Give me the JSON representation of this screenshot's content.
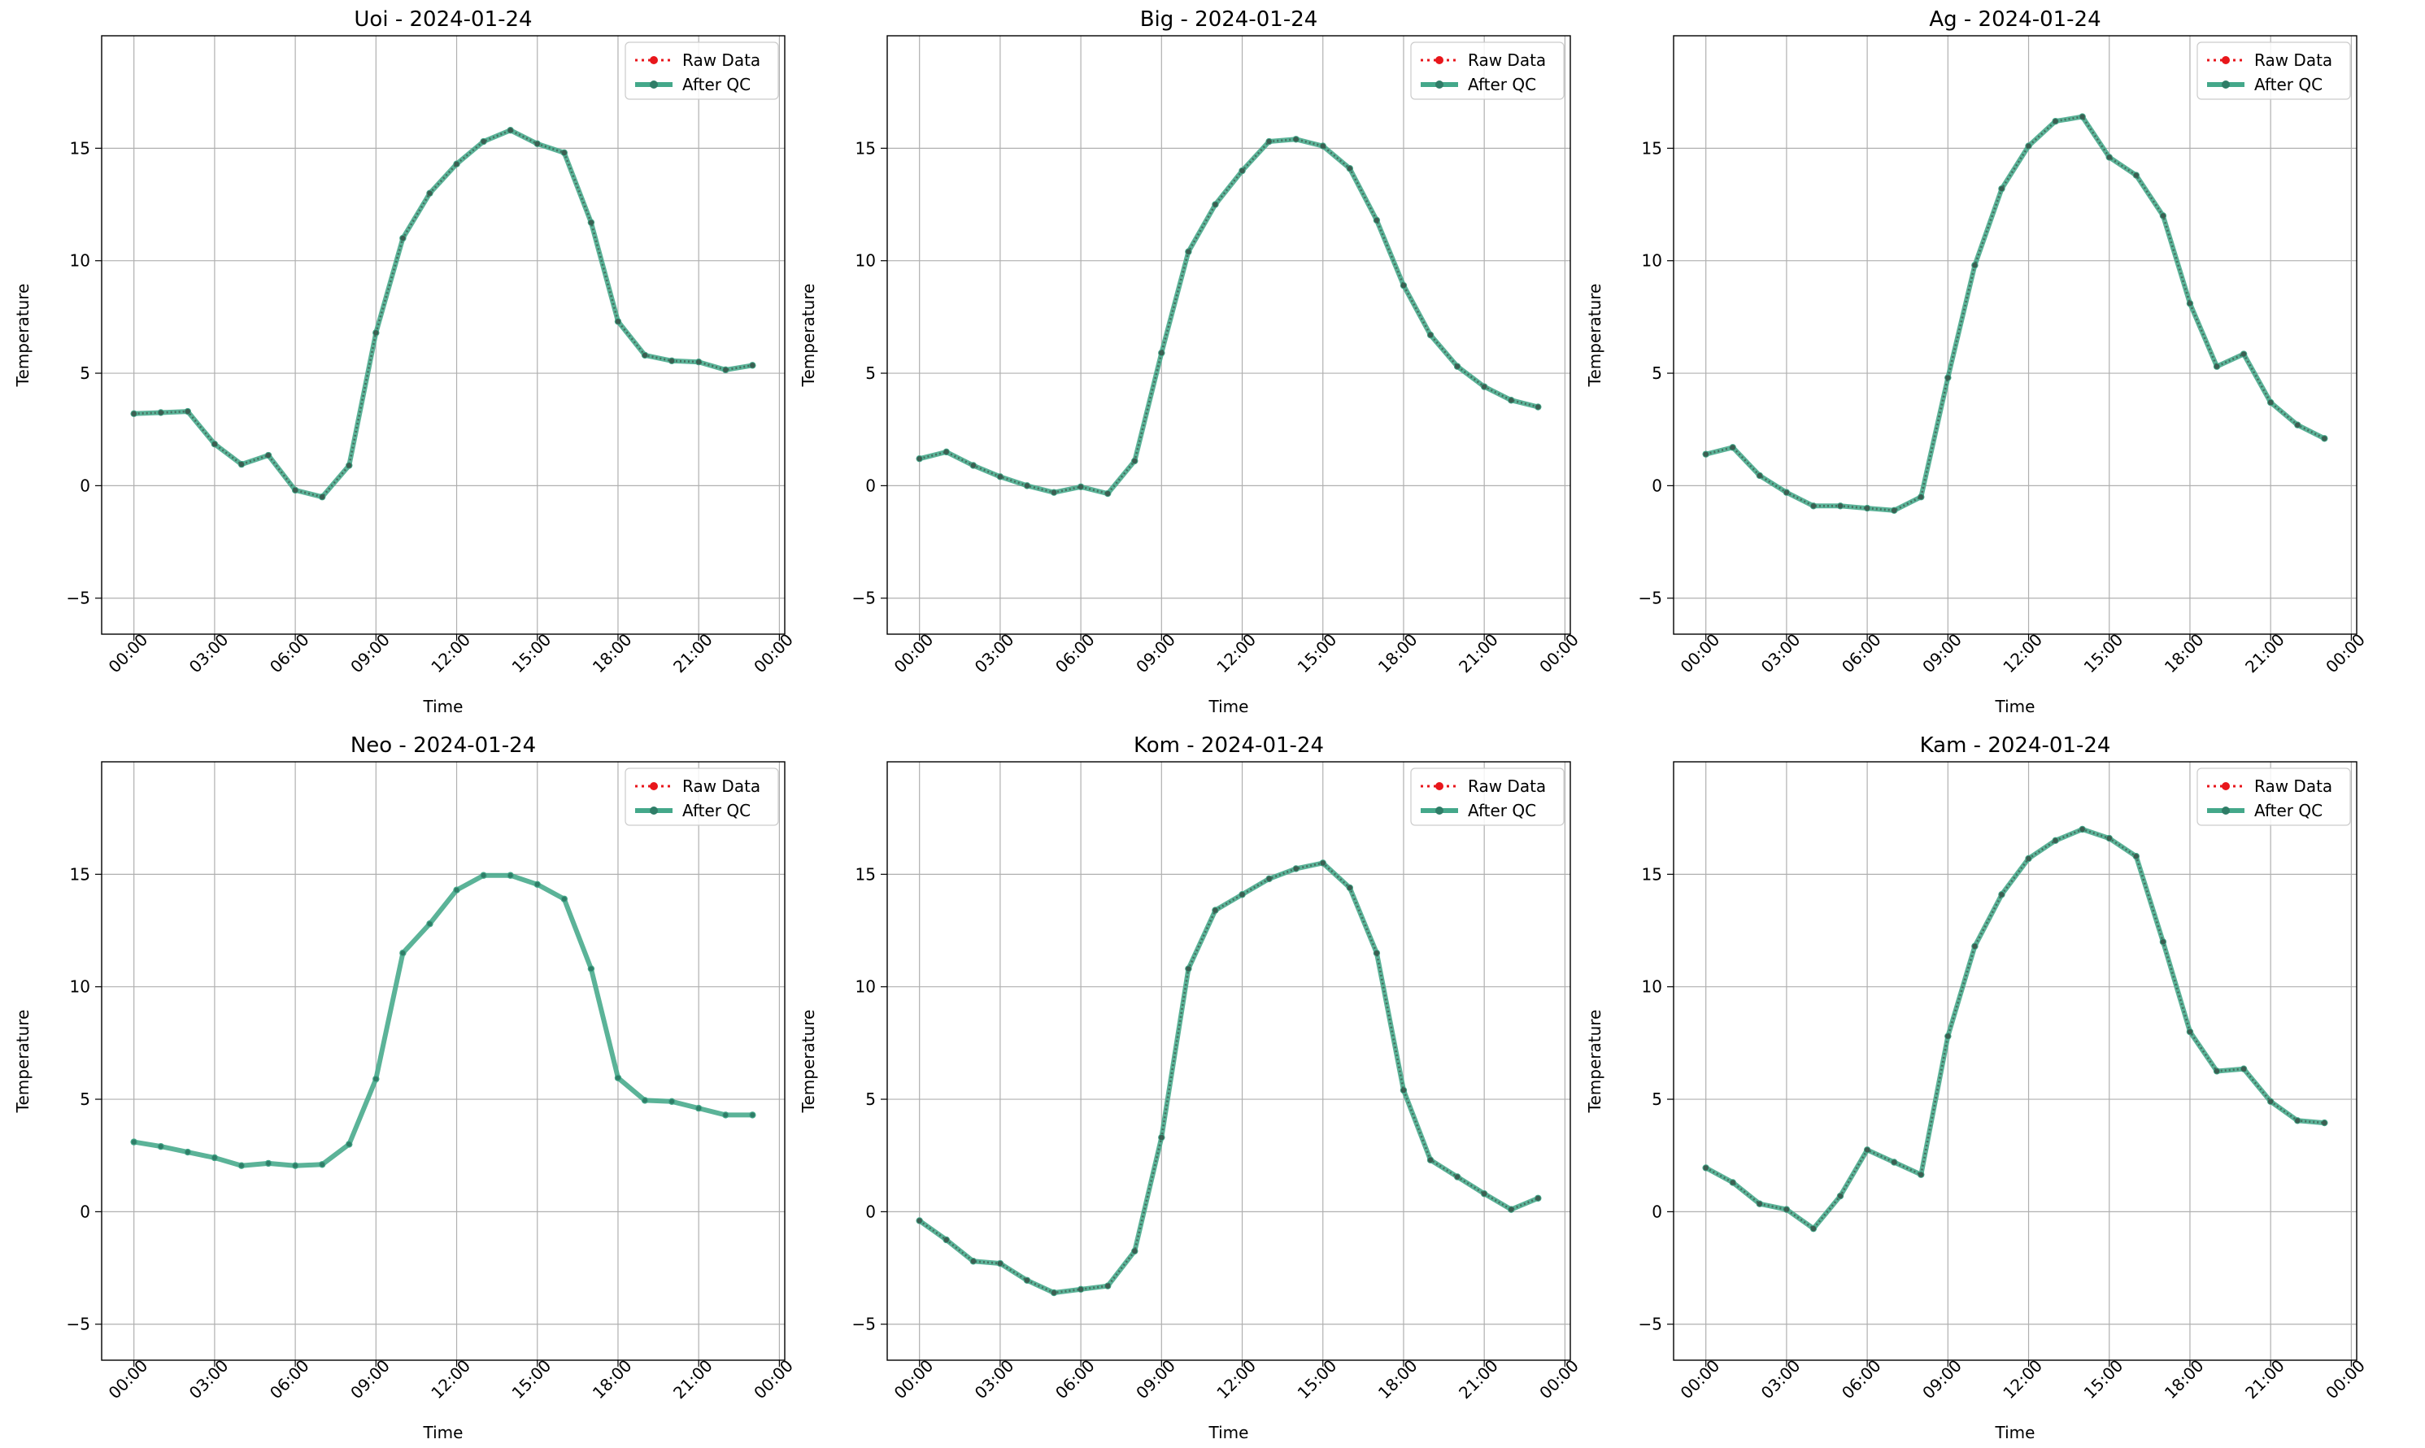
{
  "legend": {
    "raw_label": "Raw Data",
    "qc_label": "After QC",
    "placement": "upper-right"
  },
  "colors": {
    "raw": "#e8161b",
    "qc": "#44a88a",
    "grid": "#b0b0b0",
    "axis": "#000000"
  },
  "axes": {
    "xlabel": "Time",
    "ylabel": "Temperature",
    "xticks": [
      "00:00",
      "03:00",
      "06:00",
      "09:00",
      "12:00",
      "15:00",
      "18:00",
      "21:00",
      "00:00"
    ],
    "yticks": [
      "-5",
      "0",
      "5",
      "10",
      "15"
    ]
  },
  "chart_data": [
    {
      "type": "line",
      "title": "Uoi - 2024-01-24",
      "x": [
        "00:00",
        "01:00",
        "02:00",
        "03:00",
        "04:00",
        "05:00",
        "06:00",
        "07:00",
        "08:00",
        "09:00",
        "10:00",
        "11:00",
        "12:00",
        "13:00",
        "14:00",
        "15:00",
        "16:00",
        "17:00",
        "18:00",
        "19:00",
        "20:00",
        "21:00",
        "22:00",
        "23:00"
      ],
      "series": [
        {
          "name": "Raw Data",
          "values": [
            3.2,
            3.25,
            3.3,
            1.85,
            0.95,
            1.35,
            -0.2,
            -0.5,
            0.9,
            6.8,
            11.0,
            13.0,
            14.3,
            15.3,
            15.8,
            15.2,
            14.8,
            11.7,
            7.3,
            5.8,
            5.55,
            5.5,
            5.15,
            5.35
          ]
        },
        {
          "name": "After QC",
          "values": [
            3.2,
            3.25,
            3.3,
            1.85,
            0.95,
            1.35,
            -0.2,
            -0.5,
            0.9,
            6.8,
            11.0,
            13.0,
            14.3,
            15.3,
            15.8,
            15.2,
            14.8,
            11.7,
            7.3,
            5.8,
            5.55,
            5.5,
            5.15,
            5.35
          ]
        }
      ],
      "xlabel": "Time",
      "ylabel": "Temperature",
      "ylim": [
        -6.6,
        20
      ],
      "grid": true,
      "legend": "upper-right"
    },
    {
      "type": "line",
      "title": "Big - 2024-01-24",
      "x": [
        "00:00",
        "01:00",
        "02:00",
        "03:00",
        "04:00",
        "05:00",
        "06:00",
        "07:00",
        "08:00",
        "09:00",
        "10:00",
        "11:00",
        "12:00",
        "13:00",
        "14:00",
        "15:00",
        "16:00",
        "17:00",
        "18:00",
        "19:00",
        "20:00",
        "21:00",
        "22:00",
        "23:00"
      ],
      "series": [
        {
          "name": "Raw Data",
          "values": [
            1.2,
            1.5,
            0.9,
            0.4,
            0.0,
            -0.3,
            -0.05,
            -0.35,
            1.1,
            5.9,
            10.4,
            12.5,
            14.0,
            15.3,
            15.4,
            15.1,
            14.1,
            11.8,
            8.9,
            6.7,
            5.3,
            4.4,
            3.8,
            3.5
          ]
        },
        {
          "name": "After QC",
          "values": [
            1.2,
            1.5,
            0.9,
            0.4,
            0.0,
            -0.3,
            -0.05,
            -0.35,
            1.1,
            5.9,
            10.4,
            12.5,
            14.0,
            15.3,
            15.4,
            15.1,
            14.1,
            11.8,
            8.9,
            6.7,
            5.3,
            4.4,
            3.8,
            3.5
          ]
        }
      ],
      "xlabel": "Time",
      "ylabel": "Temperature",
      "ylim": [
        -6.6,
        20
      ],
      "grid": true,
      "legend": "upper-right"
    },
    {
      "type": "line",
      "title": "Ag - 2024-01-24",
      "x": [
        "00:00",
        "01:00",
        "02:00",
        "03:00",
        "04:00",
        "05:00",
        "06:00",
        "07:00",
        "08:00",
        "09:00",
        "10:00",
        "11:00",
        "12:00",
        "13:00",
        "14:00",
        "15:00",
        "16:00",
        "17:00",
        "18:00",
        "19:00",
        "20:00",
        "21:00",
        "22:00",
        "23:00"
      ],
      "series": [
        {
          "name": "Raw Data",
          "values": [
            1.4,
            1.7,
            0.45,
            -0.3,
            -0.9,
            -0.9,
            -1.0,
            -1.1,
            -0.5,
            4.8,
            9.8,
            13.2,
            15.1,
            16.2,
            16.4,
            14.6,
            13.8,
            12.0,
            8.1,
            5.3,
            5.85,
            3.7,
            2.7,
            2.1
          ]
        },
        {
          "name": "After QC",
          "values": [
            1.4,
            1.7,
            0.45,
            -0.3,
            -0.9,
            -0.9,
            -1.0,
            -1.1,
            -0.5,
            4.8,
            9.8,
            13.2,
            15.1,
            16.2,
            16.4,
            14.6,
            13.8,
            12.0,
            8.1,
            5.3,
            5.85,
            3.7,
            2.7,
            2.1
          ]
        }
      ],
      "xlabel": "Time",
      "ylabel": "Temperature",
      "ylim": [
        -6.6,
        20
      ],
      "grid": true,
      "legend": "upper-right"
    },
    {
      "type": "line",
      "title": "Neo - 2024-01-24",
      "x": [
        "00:00",
        "01:00",
        "02:00",
        "03:00",
        "04:00",
        "05:00",
        "06:00",
        "07:00",
        "08:00",
        "09:00",
        "10:00",
        "11:00",
        "12:00",
        "13:00",
        "14:00",
        "15:00",
        "16:00",
        "17:00",
        "18:00",
        "19:00",
        "20:00",
        "21:00",
        "22:00",
        "23:00"
      ],
      "series": [
        {
          "name": "Raw Data",
          "values": [
            3.1,
            2.9,
            2.65,
            2.4,
            2.05,
            2.15,
            2.05,
            2.1,
            3.0,
            5.9,
            11.5,
            12.8,
            14.3,
            14.95,
            14.95,
            14.55,
            13.9,
            10.8,
            5.95,
            4.95,
            4.9,
            4.6,
            4.3,
            4.3
          ]
        },
        {
          "name": "After QC",
          "values": [
            3.1,
            2.9,
            2.65,
            2.4,
            2.05,
            2.15,
            2.05,
            2.1,
            3.0,
            5.9,
            11.5,
            12.8,
            14.3,
            14.95,
            14.95,
            14.55,
            13.9,
            10.8,
            5.95,
            4.95,
            4.9,
            4.6,
            4.3,
            4.3
          ]
        }
      ],
      "xlabel": "Time",
      "ylabel": "Temperature",
      "ylim": [
        -6.6,
        20
      ],
      "grid": true,
      "legend": "upper-right"
    },
    {
      "type": "line",
      "title": "Kom - 2024-01-24",
      "x": [
        "00:00",
        "01:00",
        "02:00",
        "03:00",
        "04:00",
        "05:00",
        "06:00",
        "07:00",
        "08:00",
        "09:00",
        "10:00",
        "11:00",
        "12:00",
        "13:00",
        "14:00",
        "15:00",
        "16:00",
        "17:00",
        "18:00",
        "19:00",
        "20:00",
        "21:00",
        "22:00",
        "23:00"
      ],
      "series": [
        {
          "name": "Raw Data",
          "values": [
            -0.4,
            -1.25,
            -2.2,
            -2.3,
            -3.05,
            -3.6,
            -3.45,
            -3.3,
            -1.75,
            3.3,
            10.8,
            13.4,
            14.1,
            14.8,
            15.25,
            15.5,
            14.4,
            11.5,
            5.4,
            2.3,
            1.55,
            0.8,
            0.1,
            0.6
          ]
        },
        {
          "name": "After QC",
          "values": [
            -0.4,
            -1.25,
            -2.2,
            -2.3,
            -3.05,
            -3.6,
            -3.45,
            -3.3,
            -1.75,
            3.3,
            10.8,
            13.4,
            14.1,
            14.8,
            15.25,
            15.5,
            14.4,
            11.5,
            5.4,
            2.3,
            1.55,
            0.8,
            0.1,
            0.6
          ]
        }
      ],
      "xlabel": "Time",
      "ylabel": "Temperature",
      "ylim": [
        -6.6,
        20
      ],
      "grid": true,
      "legend": "upper-right"
    },
    {
      "type": "line",
      "title": "Kam - 2024-01-24",
      "x": [
        "00:00",
        "01:00",
        "02:00",
        "03:00",
        "04:00",
        "05:00",
        "06:00",
        "07:00",
        "08:00",
        "09:00",
        "10:00",
        "11:00",
        "12:00",
        "13:00",
        "14:00",
        "15:00",
        "16:00",
        "17:00",
        "18:00",
        "19:00",
        "20:00",
        "21:00",
        "22:00",
        "23:00"
      ],
      "series": [
        {
          "name": "Raw Data",
          "values": [
            1.95,
            1.3,
            0.35,
            0.1,
            -0.75,
            0.7,
            2.75,
            2.2,
            1.65,
            7.8,
            11.8,
            14.1,
            15.7,
            16.5,
            17.0,
            16.6,
            15.8,
            12.0,
            8.0,
            6.25,
            6.35,
            4.9,
            4.05,
            3.95
          ]
        },
        {
          "name": "After QC",
          "values": [
            1.95,
            1.3,
            0.35,
            0.1,
            -0.75,
            0.7,
            2.75,
            2.2,
            1.65,
            7.8,
            11.8,
            14.1,
            15.7,
            16.5,
            17.0,
            16.6,
            15.8,
            12.0,
            8.0,
            6.25,
            6.35,
            4.9,
            4.05,
            3.95
          ]
        }
      ],
      "xlabel": "Time",
      "ylabel": "Temperature",
      "ylim": [
        -6.6,
        20
      ],
      "grid": true,
      "legend": "upper-right"
    }
  ]
}
